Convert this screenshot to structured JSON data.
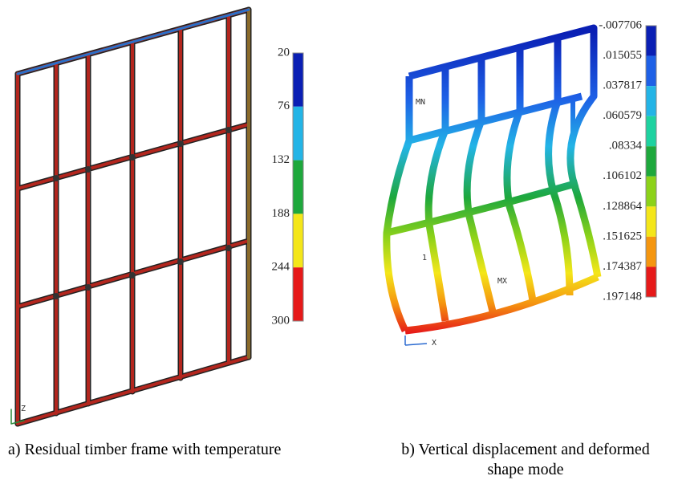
{
  "panel_a": {
    "caption": "a) Residual timber frame with temperature",
    "axis_label": "Z",
    "legend": {
      "labels": [
        "20",
        "76",
        "132",
        "188",
        "244",
        "300"
      ],
      "colors": [
        "#0a1fb4",
        "#23b4e6",
        "#1ea83c",
        "#f4e619",
        "#e61919"
      ]
    }
  },
  "panel_b": {
    "caption_lines": [
      "b) Vertical displacement and deformed",
      "shape mode"
    ],
    "axis_label": "X",
    "node_labels": [
      "MN",
      "MX",
      "1"
    ],
    "legend": {
      "labels": [
        "-.007706",
        ".015055",
        ".037817",
        ".060579",
        ".08334",
        ".106102",
        ".128864",
        ".151625",
        ".174387",
        ".197148"
      ],
      "colors": [
        "#0a1fb4",
        "#1e60e6",
        "#23b4e6",
        "#1ed2a0",
        "#1ea83c",
        "#8cd219",
        "#f4e619",
        "#f5960f",
        "#e61919"
      ]
    }
  }
}
